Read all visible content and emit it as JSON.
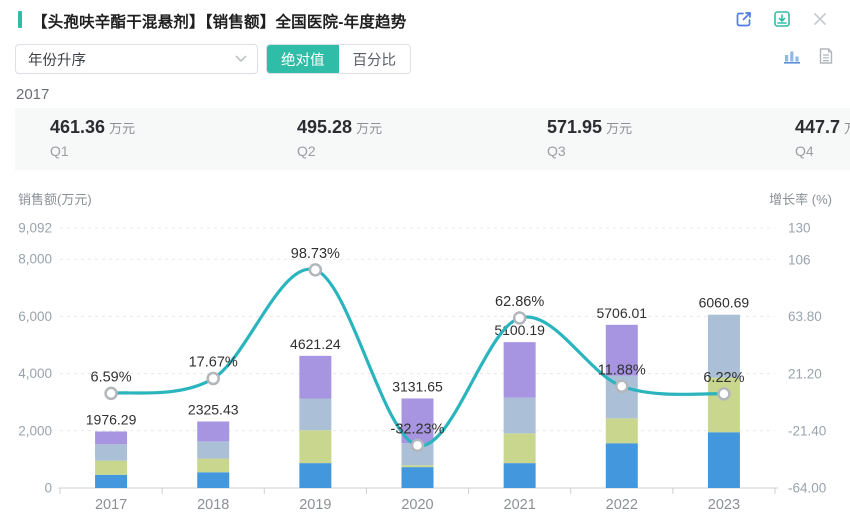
{
  "header": {
    "title": "【头孢呋辛酯干混悬剂】【销售额】全国医院-年度趋势",
    "actions": [
      {
        "icon": "external-link-icon",
        "color": "#4e7ceb"
      },
      {
        "icon": "download-icon",
        "color": "#30bda8"
      },
      {
        "icon": "close-icon",
        "color": "#c9ccd0"
      }
    ]
  },
  "controls": {
    "sort_dropdown_value": "年份升序",
    "toggle": {
      "absolute_label": "绝对值",
      "percent_label": "百分比",
      "active": "绝对值"
    },
    "view_switcher": [
      {
        "icon": "bar-chart-icon",
        "active": true
      },
      {
        "icon": "document-icon",
        "active": false
      }
    ]
  },
  "summary": {
    "year_label": "2017",
    "cards": [
      {
        "value": "461.36",
        "unit": "万元",
        "label": "Q1"
      },
      {
        "value": "495.28",
        "unit": "万元",
        "label": "Q2"
      },
      {
        "value": "571.95",
        "unit": "万元",
        "label": "Q3"
      },
      {
        "value": "447.7",
        "unit": "万元",
        "label": "Q4"
      }
    ]
  },
  "chart_data": {
    "type": "bar",
    "subtype": "stacked-bars-with-growth-line",
    "categories": [
      "2017",
      "2018",
      "2019",
      "2020",
      "2021",
      "2022",
      "2023"
    ],
    "totals": [
      1976.29,
      2325.43,
      4621.24,
      3131.65,
      5100.19,
      5706.01,
      6060.69
    ],
    "total_labels": [
      "1976.29",
      "2325.43",
      "4621.24",
      "3131.65",
      "5100.19",
      "5706.01",
      "6060.69"
    ],
    "stack_segments": {
      "names": [
        "Q1",
        "Q2",
        "Q3",
        "Q4"
      ],
      "colors": [
        "#4397dc",
        "#c8d78d",
        "#abc0d6",
        "#a795e1"
      ],
      "values_estimated": [
        [
          461.36,
          495.28,
          571.95,
          447.7
        ],
        [
          550,
          480,
          600,
          695.43
        ],
        [
          870,
          1150,
          1110,
          1491.24
        ],
        [
          730,
          70,
          765,
          1566.65
        ],
        [
          870,
          1040,
          1250,
          1940.19
        ],
        [
          1565,
          870,
          1495,
          1776.01
        ],
        [
          1950,
          1910,
          2200.69
        ]
      ]
    },
    "line_series": {
      "name": "增长率",
      "values": [
        6.59,
        17.67,
        98.73,
        -32.23,
        62.86,
        11.88,
        6.22
      ],
      "labels": [
        "6.59%",
        "17.67%",
        "98.73%",
        "-32.23%",
        "62.86%",
        "11.88%",
        "6.22%"
      ],
      "color": "#2ab5be",
      "marker": {
        "fill": "#ffffff",
        "stroke": "#b3b7bc"
      }
    },
    "left_axis": {
      "title": "销售额(万元)",
      "range": [
        0,
        9092
      ],
      "ticks": [
        {
          "label": "9,092",
          "value": 9092
        },
        {
          "label": "8,000",
          "value": 8000
        },
        {
          "label": "6,000",
          "value": 6000
        },
        {
          "label": "4,000",
          "value": 4000
        },
        {
          "label": "2,000",
          "value": 2000
        },
        {
          "label": "0",
          "value": 0
        }
      ]
    },
    "right_axis": {
      "title": "增长率 (%)",
      "range": [
        -64,
        130
      ],
      "ticks": [
        {
          "label": "130",
          "value": 130
        },
        {
          "label": "106",
          "value": 106
        },
        {
          "label": "63.80",
          "value": 63.8
        },
        {
          "label": "21.20",
          "value": 21.2
        },
        {
          "label": "-21.40",
          "value": -21.4
        },
        {
          "label": "-64.00",
          "value": -64
        }
      ]
    },
    "grid": "dashed-horizontal",
    "legend_position": "none"
  }
}
